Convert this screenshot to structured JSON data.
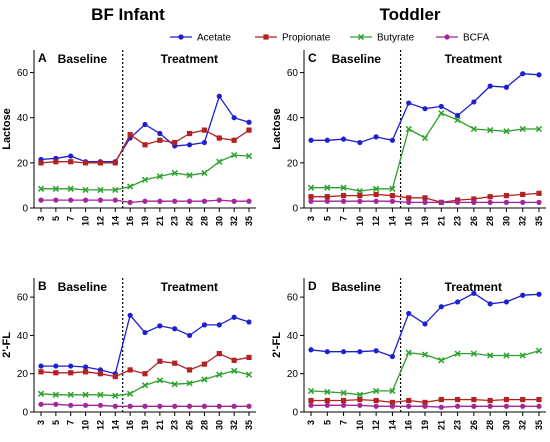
{
  "titles": {
    "left": "BF Infant",
    "right": "Toddler"
  },
  "legend": [
    {
      "name": "Acetate",
      "color": "#1f1fd1",
      "marker": "circle"
    },
    {
      "name": "Propionate",
      "color": "#b22222",
      "marker": "square"
    },
    {
      "name": "Butyrate",
      "color": "#2ca02c",
      "marker": "x"
    },
    {
      "name": "BCFA",
      "color": "#a3269a",
      "marker": "circle"
    }
  ],
  "chart_data": [
    {
      "panel": "A",
      "type": "line",
      "ylabel": "Lactose",
      "phases": [
        "Baseline",
        "Treatment"
      ],
      "x": [
        3,
        5,
        7,
        10,
        12,
        14,
        16,
        19,
        21,
        23,
        26,
        28,
        30,
        32,
        35
      ],
      "ylim": [
        0,
        70
      ],
      "yticks": [
        0,
        20,
        40,
        60
      ],
      "series": [
        {
          "name": "Acetate",
          "values": [
            21.5,
            22,
            23,
            20.5,
            20.5,
            20.5,
            31,
            37,
            33,
            27.5,
            28,
            29,
            49.5,
            40,
            38
          ]
        },
        {
          "name": "Propionate",
          "values": [
            20,
            20.5,
            20.5,
            20,
            20,
            20,
            32.5,
            28,
            30,
            29,
            33,
            34.5,
            31,
            30,
            34.5
          ]
        },
        {
          "name": "Butyrate",
          "values": [
            8.5,
            8.5,
            8.5,
            8,
            8,
            8,
            9.5,
            12.5,
            14,
            15.5,
            14.5,
            15.5,
            20.5,
            23.5,
            23
          ]
        },
        {
          "name": "BCFA",
          "values": [
            3.5,
            3.5,
            3.5,
            3.5,
            3.5,
            3.5,
            2.5,
            3,
            3,
            3,
            3,
            3,
            3.5,
            3,
            3
          ]
        }
      ]
    },
    {
      "panel": "C",
      "type": "line",
      "ylabel": "Lactose",
      "phases": [
        "Baseline",
        "Treatment"
      ],
      "x": [
        3,
        5,
        7,
        10,
        12,
        14,
        16,
        19,
        21,
        23,
        26,
        28,
        30,
        32,
        35
      ],
      "ylim": [
        0,
        70
      ],
      "yticks": [
        0,
        20,
        40,
        60
      ],
      "series": [
        {
          "name": "Acetate",
          "values": [
            30,
            30,
            30.5,
            29,
            31.5,
            30,
            46.5,
            44,
            45,
            41,
            47,
            54,
            53.5,
            59.5,
            59
          ]
        },
        {
          "name": "Propionate",
          "values": [
            5,
            5,
            5.5,
            5.5,
            6,
            5.5,
            4.5,
            4.5,
            2.5,
            3.5,
            4,
            5,
            5.5,
            6,
            6.5
          ]
        },
        {
          "name": "Butyrate",
          "values": [
            9,
            9,
            9,
            7.5,
            8.5,
            8.5,
            35,
            31,
            42,
            39,
            35,
            34.5,
            34,
            35,
            35
          ]
        },
        {
          "name": "BCFA",
          "values": [
            3,
            3,
            3,
            3,
            3,
            3,
            2.5,
            2.5,
            2.5,
            2.5,
            2.5,
            2.5,
            2.5,
            2.5,
            2.5
          ]
        }
      ]
    },
    {
      "panel": "B",
      "type": "line",
      "ylabel": "2'-FL",
      "phases": [
        "Baseline",
        "Treatment"
      ],
      "x": [
        3,
        5,
        7,
        10,
        12,
        14,
        16,
        19,
        21,
        23,
        26,
        28,
        30,
        32,
        35
      ],
      "ylim": [
        0,
        70
      ],
      "yticks": [
        0,
        20,
        40,
        60
      ],
      "series": [
        {
          "name": "Acetate",
          "values": [
            24,
            24,
            24,
            23.5,
            22,
            20,
            50.5,
            41.5,
            45,
            43.5,
            40,
            45.5,
            45.5,
            49.5,
            47
          ]
        },
        {
          "name": "Propionate",
          "values": [
            21,
            20.5,
            20.5,
            21,
            20,
            18.5,
            22,
            20,
            26.5,
            25.5,
            22,
            25,
            30.5,
            27,
            28.5
          ]
        },
        {
          "name": "Butyrate",
          "values": [
            9.5,
            9,
            9,
            9,
            9,
            8.5,
            9.5,
            14,
            16.5,
            14.5,
            15,
            17,
            19.5,
            21.5,
            19.5
          ]
        },
        {
          "name": "BCFA",
          "values": [
            4,
            4,
            3.5,
            3.5,
            3.5,
            3,
            3,
            3,
            3,
            3,
            3,
            3,
            3,
            3,
            3
          ]
        }
      ]
    },
    {
      "panel": "D",
      "type": "line",
      "ylabel": "2'-FL",
      "phases": [
        "Baseline",
        "Treatment"
      ],
      "x": [
        3,
        5,
        7,
        10,
        12,
        14,
        16,
        19,
        21,
        23,
        26,
        28,
        30,
        32,
        35
      ],
      "ylim": [
        0,
        70
      ],
      "yticks": [
        0,
        20,
        40,
        60
      ],
      "series": [
        {
          "name": "Acetate",
          "values": [
            32.5,
            31.5,
            31.5,
            31.5,
            32,
            29,
            51.5,
            46,
            55,
            57.5,
            62,
            56.5,
            57.5,
            61,
            61.5
          ]
        },
        {
          "name": "Propionate",
          "values": [
            6,
            6,
            6,
            6.5,
            6,
            5,
            6,
            5,
            6.5,
            6.5,
            6.5,
            6,
            6.5,
            6.5,
            6.5
          ]
        },
        {
          "name": "Butyrate",
          "values": [
            11,
            10.5,
            10,
            9,
            11,
            11,
            31,
            30,
            27,
            30.5,
            30.5,
            29.5,
            29.5,
            29.5,
            32
          ]
        },
        {
          "name": "BCFA",
          "values": [
            3.5,
            3.5,
            3.5,
            3.5,
            3,
            3,
            3,
            3,
            2.5,
            3,
            3,
            3,
            3,
            3,
            3
          ]
        }
      ]
    }
  ]
}
